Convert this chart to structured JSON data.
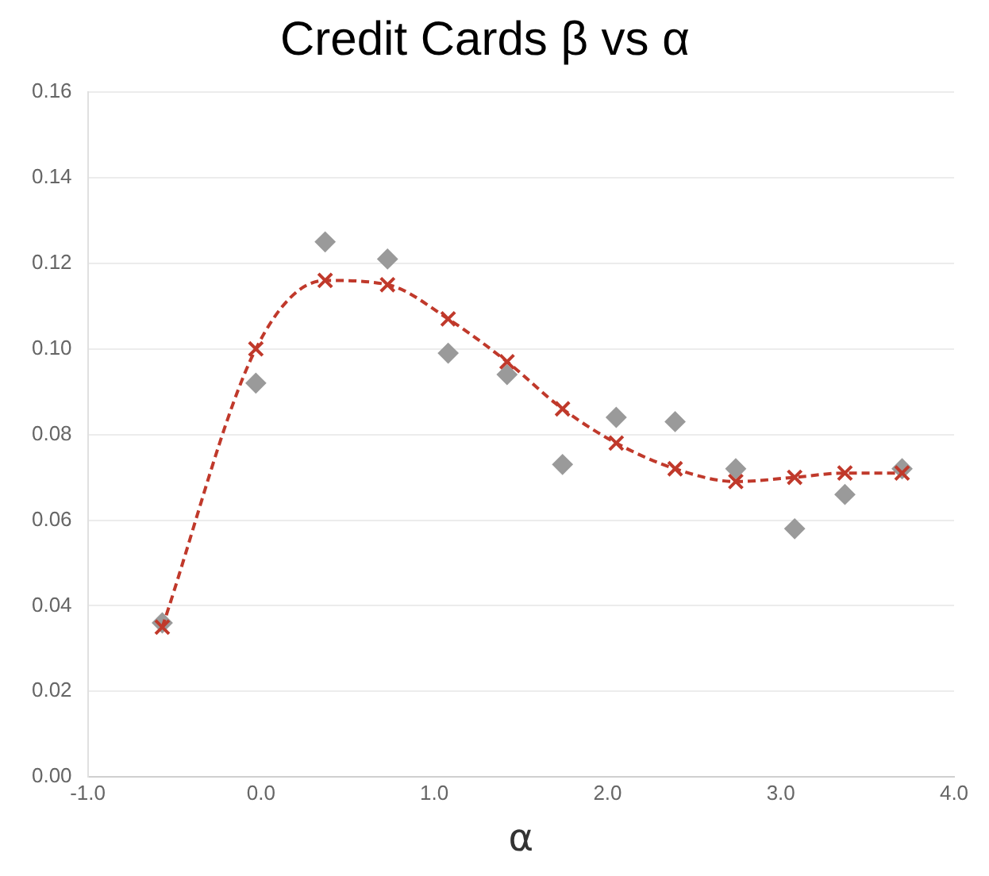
{
  "chart_data": {
    "type": "scatter",
    "title": "Credit Cards β vs α",
    "xlabel": "α",
    "xlim": [
      -1,
      4
    ],
    "xticks": [
      {
        "value": -1,
        "label": "-1.0"
      },
      {
        "value": 0,
        "label": "0.0"
      },
      {
        "value": 1,
        "label": "1.0"
      },
      {
        "value": 2,
        "label": "2.0"
      },
      {
        "value": 3,
        "label": "3.0"
      },
      {
        "value": 4,
        "label": "4.0"
      }
    ],
    "ylim": [
      0,
      0.16
    ],
    "yticks": [
      {
        "value": 0,
        "label": "0.00"
      },
      {
        "value": 0.02,
        "label": "0.02"
      },
      {
        "value": 0.04,
        "label": "0.04"
      },
      {
        "value": 0.06,
        "label": "0.06"
      },
      {
        "value": 0.08,
        "label": "0.08"
      },
      {
        "value": 0.1,
        "label": "0.10"
      },
      {
        "value": 0.12,
        "label": "0.12"
      },
      {
        "value": 0.14,
        "label": "0.14"
      },
      {
        "value": 0.16,
        "label": "0.16"
      }
    ],
    "grid": "y",
    "legend": false,
    "series": [
      {
        "type": "scatter",
        "color": "#9a9a9a",
        "marker": "diamond",
        "x": [
          -0.57,
          -0.03,
          0.37,
          0.73,
          1.08,
          1.42,
          1.74,
          2.05,
          2.39,
          2.74,
          3.08,
          3.37,
          3.7
        ],
        "values": [
          0.036,
          0.092,
          0.125,
          0.121,
          0.099,
          0.094,
          0.073,
          0.084,
          0.083,
          0.072,
          0.058,
          0.066,
          0.072
        ]
      },
      {
        "type": "line",
        "color": "#c0392b",
        "marker": "cross",
        "line_style": "dashed",
        "x": [
          -0.57,
          -0.03,
          0.37,
          0.73,
          1.08,
          1.42,
          1.74,
          2.05,
          2.39,
          2.74,
          3.08,
          3.37,
          3.7
        ],
        "values": [
          0.035,
          0.1,
          0.116,
          0.115,
          0.107,
          0.097,
          0.086,
          0.078,
          0.072,
          0.069,
          0.07,
          0.071,
          0.071
        ]
      }
    ]
  }
}
